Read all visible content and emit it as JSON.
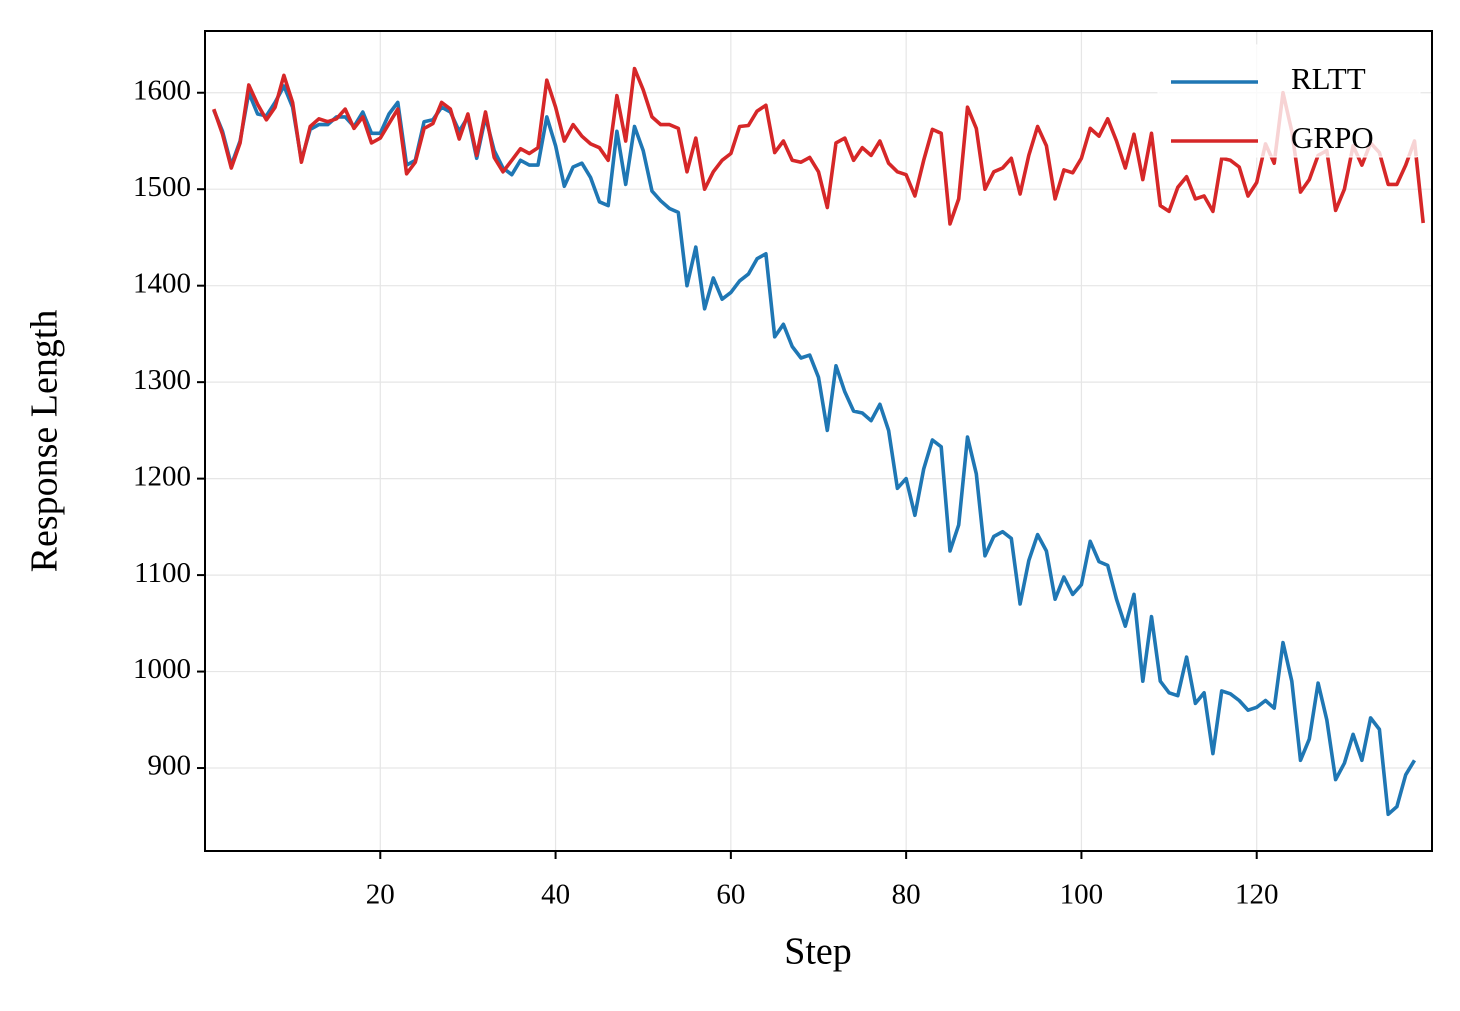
{
  "chart_data": {
    "type": "line",
    "xlabel": "Step",
    "ylabel": "Response Length",
    "x": [
      1,
      2,
      3,
      4,
      5,
      6,
      7,
      8,
      9,
      10,
      11,
      12,
      13,
      14,
      15,
      16,
      17,
      18,
      19,
      20,
      21,
      22,
      23,
      24,
      25,
      26,
      27,
      28,
      29,
      30,
      31,
      32,
      33,
      34,
      35,
      36,
      37,
      38,
      39,
      40,
      41,
      42,
      43,
      44,
      45,
      46,
      47,
      48,
      49,
      50,
      51,
      52,
      53,
      54,
      55,
      56,
      57,
      58,
      59,
      60,
      61,
      62,
      63,
      64,
      65,
      66,
      67,
      68,
      69,
      70,
      71,
      72,
      73,
      74,
      75,
      76,
      77,
      78,
      79,
      80,
      81,
      82,
      83,
      84,
      85,
      86,
      87,
      88,
      89,
      90,
      91,
      92,
      93,
      94,
      95,
      96,
      97,
      98,
      99,
      100,
      101,
      102,
      103,
      104,
      105,
      106,
      107,
      108,
      109,
      110,
      111,
      112,
      113,
      114,
      115,
      116,
      117,
      118,
      119,
      120,
      121,
      122,
      123,
      124,
      125,
      126,
      127,
      128,
      129,
      130,
      131,
      132,
      133,
      134,
      135,
      136,
      137,
      138,
      139
    ],
    "series": [
      {
        "name": "RLTT",
        "color": "#1f77b4",
        "values": [
          1582,
          1560,
          1525,
          1550,
          1600,
          1578,
          1576,
          1590,
          1607,
          1585,
          1530,
          1562,
          1567,
          1567,
          1575,
          1575,
          1565,
          1580,
          1558,
          1558,
          1578,
          1590,
          1525,
          1530,
          1570,
          1572,
          1585,
          1580,
          1560,
          1575,
          1532,
          1575,
          1540,
          1522,
          1515,
          1530,
          1525,
          1525,
          1575,
          1545,
          1503,
          1523,
          1527,
          1512,
          1487,
          1483,
          1560,
          1505,
          1565,
          1540,
          1498,
          1488,
          1480,
          1476,
          1400,
          1440,
          1376,
          1408,
          1386,
          1393,
          1405,
          1412,
          1428,
          1433,
          1347,
          1360,
          1337,
          1325,
          1328,
          1305,
          1250,
          1317,
          1290,
          1270,
          1268,
          1260,
          1277,
          1250,
          1190,
          1200,
          1162,
          1210,
          1240,
          1233,
          1125,
          1152,
          1243,
          1205,
          1120,
          1140,
          1145,
          1138,
          1070,
          1115,
          1142,
          1125,
          1075,
          1098,
          1080,
          1090,
          1135,
          1114,
          1110,
          1075,
          1047,
          1080,
          990,
          1057,
          990,
          978,
          975,
          1015,
          967,
          978,
          915,
          980,
          977,
          970,
          960,
          963,
          970,
          962,
          1030,
          990,
          908,
          930,
          988,
          950,
          888,
          905,
          935,
          908,
          952,
          940,
          852,
          860,
          893,
          908,
          null
        ]
      },
      {
        "name": "GRPO",
        "color": "#d62728",
        "values": [
          1583,
          1557,
          1522,
          1548,
          1608,
          1588,
          1572,
          1585,
          1618,
          1590,
          1528,
          1565,
          1573,
          1570,
          1573,
          1583,
          1563,
          1575,
          1548,
          1553,
          1568,
          1583,
          1516,
          1528,
          1563,
          1568,
          1590,
          1583,
          1552,
          1578,
          1535,
          1580,
          1533,
          1518,
          1530,
          1542,
          1537,
          1543,
          1613,
          1585,
          1550,
          1567,
          1555,
          1547,
          1543,
          1530,
          1597,
          1550,
          1625,
          1603,
          1575,
          1567,
          1567,
          1563,
          1518,
          1553,
          1500,
          1518,
          1530,
          1537,
          1565,
          1566,
          1581,
          1587,
          1538,
          1550,
          1530,
          1528,
          1533,
          1518,
          1481,
          1548,
          1553,
          1530,
          1543,
          1535,
          1550,
          1527,
          1518,
          1515,
          1493,
          1530,
          1562,
          1558,
          1464,
          1490,
          1585,
          1563,
          1500,
          1518,
          1522,
          1532,
          1495,
          1535,
          1565,
          1545,
          1490,
          1520,
          1517,
          1532,
          1563,
          1555,
          1573,
          1550,
          1522,
          1557,
          1510,
          1558,
          1483,
          1477,
          1502,
          1513,
          1490,
          1493,
          1477,
          1532,
          1530,
          1523,
          1493,
          1507,
          1547,
          1527,
          1600,
          1560,
          1497,
          1510,
          1535,
          1540,
          1478,
          1500,
          1545,
          1525,
          1548,
          1538,
          1505,
          1505,
          1525,
          1550,
          1465
        ]
      }
    ],
    "xlim": [
      0,
      140
    ],
    "ylim": [
      814,
      1664
    ],
    "xticks": [
      20,
      40,
      60,
      80,
      100,
      120
    ],
    "yticks": [
      900,
      1000,
      1100,
      1200,
      1300,
      1400,
      1500,
      1600
    ],
    "grid": true,
    "legend": "upper right"
  }
}
